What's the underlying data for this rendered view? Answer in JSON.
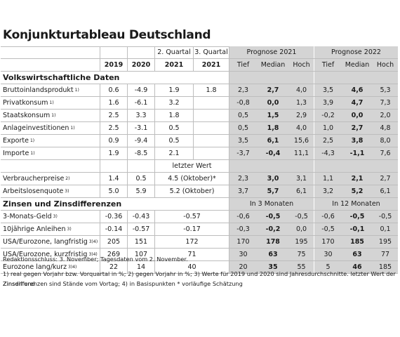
{
  "title": "Konjunkturtableau Deutschland",
  "header": {
    "q2": "2. Quartal",
    "q3": "3. Quartal",
    "prog2021": "Prognose 2021",
    "prog2022": "Prognose 2022",
    "y2019": "2019",
    "y2020": "2020",
    "y2021a": "2021",
    "y2021b": "2021",
    "tief": "Tief",
    "median": "Median",
    "hoch": "Hoch"
  },
  "sections": {
    "volks": "Volkswirtschaftliche Daten",
    "letzter": "letzter Wert",
    "zinsen": "Zinsen und Zinsdifferenzen",
    "in3": "In 3 Monaten",
    "in12": "In 12 Monaten"
  },
  "rows_a": [
    {
      "label": "Bruttoinlandsprodukt",
      "sup": "1)",
      "v": [
        "0.6",
        "-4.9",
        "1.9",
        "1.8",
        "2,3",
        "2,7",
        "4,0",
        "3,5",
        "4,6",
        "5,3"
      ]
    },
    {
      "label": "Privatkonsum",
      "sup": "1)",
      "v": [
        "1.6",
        "-6.1",
        "3.2",
        "",
        "-0,8",
        "0,0",
        "1,3",
        "3,9",
        "4,7",
        "7,3"
      ]
    },
    {
      "label": "Staatskonsum",
      "sup": "1)",
      "v": [
        "2.5",
        "3.3",
        "1.8",
        "",
        "0,5",
        "1,5",
        "2,9",
        "-0,2",
        "0,0",
        "2,0"
      ]
    },
    {
      "label": "Anlageinvestitionen",
      "sup": "1)",
      "v": [
        "2.5",
        "-3.1",
        "0.5",
        "",
        "0,5",
        "1,8",
        "4,0",
        "1,0",
        "2,7",
        "4,8"
      ]
    },
    {
      "label": "Exporte",
      "sup": "1)",
      "v": [
        "0.9",
        "-9.4",
        "0.5",
        "",
        "3,5",
        "6,1",
        "15,6",
        "2,5",
        "3,8",
        "8,0"
      ]
    },
    {
      "label": "Importe",
      "sup": "1)",
      "v": [
        "1.9",
        "-8.5",
        "2.1",
        "",
        "-3,7",
        "-0,4",
        "11,1",
        "-4,3",
        "-1,1",
        "7,6"
      ]
    }
  ],
  "rows_b": [
    {
      "label": "Verbraucherpreise",
      "sup": "2)",
      "v": [
        "1.4",
        "0.5",
        "4.5 (Oktober)*",
        "2,3",
        "3,0",
        "3,1",
        "1,1",
        "2,1",
        "2,7"
      ]
    },
    {
      "label": "Arbeitslosenquote",
      "sup": "3)",
      "v": [
        "5.0",
        "5.9",
        "5.2 (Oktober)",
        "3,7",
        "5,7",
        "6,1",
        "3,2",
        "5,2",
        "6,1"
      ]
    }
  ],
  "rows_c": [
    {
      "label": "3-Monats-Geld",
      "sup": "3)",
      "v": [
        "-0.36",
        "-0.43",
        "-0.57",
        "-0,6",
        "-0,5",
        "-0,5",
        "-0,6",
        "-0,5",
        "-0,5"
      ]
    },
    {
      "label": "10jährige Anleihen",
      "sup": "3)",
      "v": [
        "-0.14",
        "-0.57",
        "-0.17",
        "-0,3",
        "-0,2",
        "0,0",
        "-0,5",
        "-0,1",
        "0,1"
      ]
    },
    {
      "label": "USA/Eurozone, langfristig",
      "sup": "3)4)",
      "v": [
        "205",
        "151",
        "172",
        "170",
        "178",
        "195",
        "170",
        "185",
        "195"
      ]
    },
    {
      "label": "USA/Eurozone, kurzfristig",
      "sup": "3)4)",
      "v": [
        "269",
        "107",
        "71",
        "30",
        "63",
        "75",
        "30",
        "63",
        "77"
      ]
    },
    {
      "label": "Eurozone lang/kurz",
      "sup": "3)4)",
      "v": [
        "22",
        "14",
        "40",
        "20",
        "35",
        "55",
        "5",
        "46",
        "185"
      ]
    }
  ],
  "footer": {
    "line1": "Redaktionsschluss: 3. November; Tagesdaten vom 2. November.",
    "line2": "1) real gegen Vorjahr bzw. Vorquartal in %; 2) gegen Vorjahr in %; 3) Werte für 2019 und 2020 sind Jahresdurchschnitte. letzter Wert der Zinsen und",
    "line3": "Zinsdifferenzen sind Stände vom Vortag; 4) in Basispunkten * vorläufige Schätzung"
  }
}
